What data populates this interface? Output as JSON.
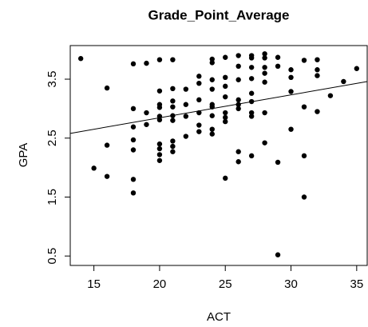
{
  "chart_data": {
    "type": "scatter",
    "title": "Grade_Point_Average",
    "x_label": "ACT",
    "y_label": "GPA",
    "xlim": [
      13.2,
      35.8
    ],
    "ylim": [
      0.34,
      4.07
    ],
    "xticks": [
      15,
      20,
      25,
      30,
      35
    ],
    "yticks": [
      0.5,
      1.5,
      2.5,
      3.5
    ],
    "color": "#000000",
    "fit_line": {
      "x": [
        13.2,
        35.8
      ],
      "y": [
        2.58,
        3.46
      ]
    },
    "x": [
      14,
      15,
      16,
      16,
      16,
      18,
      18,
      18,
      18,
      18,
      18,
      18,
      19,
      19,
      19,
      20,
      20,
      20,
      20,
      20,
      20,
      20,
      20,
      20,
      20,
      21,
      21,
      21,
      21,
      21,
      21,
      21,
      21,
      21,
      22,
      22,
      22,
      22,
      23,
      23,
      23,
      23,
      23,
      23,
      24,
      24,
      24,
      24,
      24,
      24,
      24,
      24,
      24,
      25,
      25,
      25,
      25,
      25,
      25,
      25,
      25,
      26,
      26,
      26,
      26,
      26,
      26,
      26,
      26,
      27,
      27,
      27,
      27,
      27,
      27,
      27,
      27,
      27,
      28,
      28,
      28,
      28,
      28,
      28,
      28,
      29,
      29,
      29,
      29,
      30,
      30,
      30,
      30,
      31,
      31,
      31,
      31,
      32,
      32,
      32,
      32,
      33,
      34,
      35
    ],
    "y": [
      3.85,
      1.99,
      3.35,
      2.38,
      1.85,
      3.76,
      3.0,
      2.69,
      2.47,
      2.3,
      1.8,
      1.57,
      3.77,
      2.93,
      2.73,
      3.83,
      3.3,
      3.07,
      3.02,
      2.87,
      2.81,
      2.4,
      2.32,
      2.22,
      2.12,
      3.83,
      3.34,
      3.13,
      3.03,
      2.88,
      2.8,
      2.45,
      2.36,
      2.27,
      3.33,
      3.07,
      2.87,
      2.53,
      3.55,
      3.43,
      3.15,
      2.93,
      2.72,
      2.61,
      3.84,
      3.78,
      3.49,
      3.33,
      3.07,
      3.03,
      2.88,
      2.65,
      2.57,
      3.87,
      3.53,
      3.38,
      3.2,
      2.93,
      2.85,
      2.78,
      1.82,
      3.9,
      3.72,
      3.49,
      3.15,
      3.07,
      3.0,
      2.27,
      2.1,
      3.9,
      3.86,
      3.7,
      3.51,
      3.26,
      3.12,
      2.93,
      2.87,
      2.2,
      3.93,
      3.86,
      3.7,
      3.6,
      3.45,
      2.93,
      2.42,
      3.87,
      3.72,
      2.09,
      0.52,
      3.66,
      3.53,
      3.29,
      2.65,
      3.82,
      3.03,
      2.2,
      1.5,
      3.83,
      3.66,
      3.56,
      2.95,
      3.22,
      3.46,
      3.68
    ]
  }
}
